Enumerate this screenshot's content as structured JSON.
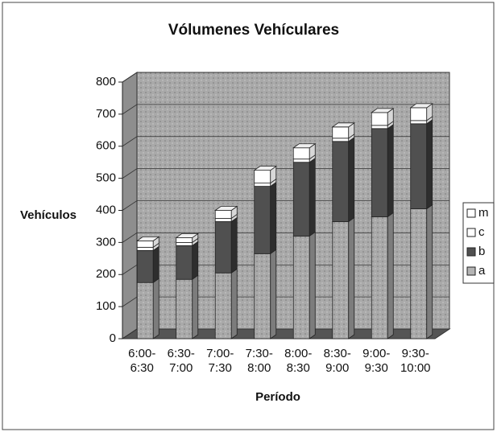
{
  "chart_data": {
    "type": "bar3d_stacked",
    "title": "Vólumenes Vehículares",
    "x_label": "Período",
    "y_label": "Vehículos",
    "categories": [
      "6:00-6:30",
      "6:30-7:00",
      "7:00-7:30",
      "7:30-8:00",
      "8:00-8:30",
      "8:30-9:00",
      "9:00-9:30",
      "9:30-10:00"
    ],
    "series": [
      {
        "name": "a",
        "color": "#b4b4b4",
        "values": [
          175,
          185,
          205,
          265,
          320,
          365,
          380,
          405
        ]
      },
      {
        "name": "b",
        "color": "#505050",
        "values": [
          100,
          105,
          160,
          210,
          230,
          250,
          275,
          265
        ]
      },
      {
        "name": "c",
        "color": "#ffffff",
        "values": [
          10,
          10,
          10,
          10,
          10,
          10,
          10,
          10
        ]
      },
      {
        "name": "m",
        "color": "#ffffff",
        "values": [
          20,
          15,
          25,
          40,
          35,
          35,
          40,
          40
        ]
      }
    ],
    "ylim": [
      0,
      800
    ],
    "yticks": [
      0,
      100,
      200,
      300,
      400,
      500,
      600,
      700,
      800
    ],
    "grid": true,
    "legend": "right"
  }
}
